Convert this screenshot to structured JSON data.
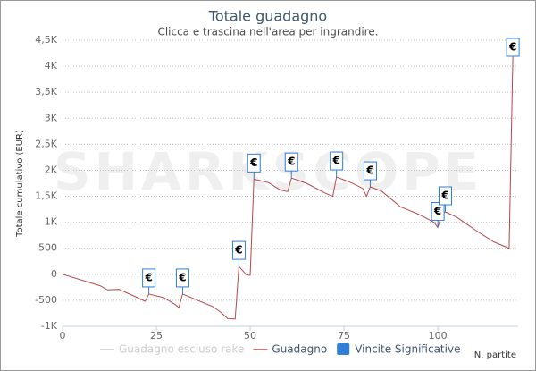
{
  "chart_data": {
    "type": "line",
    "title": "Totale guadagno",
    "subtitle": "Clicca e trascina nell'area per ingrandire.",
    "watermark": "SHARKSCOPE",
    "y_label": "Totale cumulativo (EUR)",
    "x_label": "N. partite",
    "xlim": [
      0,
      121.4
    ],
    "xticks": [
      0,
      25,
      50,
      75,
      100
    ],
    "ylim": [
      -1000,
      4500
    ],
    "yticks": [
      {
        "value": -1000,
        "label": "-1K"
      },
      -500,
      0,
      500,
      {
        "value": 1000,
        "label": "1K"
      },
      {
        "value": 1500,
        "label": "1,5K"
      },
      {
        "value": 2000,
        "label": "2K"
      },
      {
        "value": 2500,
        "label": "2,5K"
      },
      {
        "value": 3000,
        "label": "3K"
      },
      {
        "value": 3500,
        "label": "3,5K"
      },
      {
        "value": 4000,
        "label": "4K"
      },
      {
        "value": 4500,
        "label": "4,5K"
      }
    ],
    "grid": true,
    "x": [
      0,
      10,
      12,
      15,
      20,
      22,
      23,
      27,
      30,
      31,
      32,
      35,
      40,
      42,
      44,
      46,
      47,
      49,
      50,
      51,
      55,
      58,
      60,
      61,
      65,
      70,
      72,
      73,
      77,
      80,
      81,
      82,
      85,
      90,
      95,
      99,
      100,
      101,
      102,
      105,
      110,
      115,
      119,
      120
    ],
    "series": [
      {
        "name": "Guadagno escluso rake",
        "color": "#cccccc",
        "visible": false
      },
      {
        "name": "Guadagno",
        "color": "#b5484b",
        "values": [
          0,
          -220,
          -300,
          -290,
          -450,
          -520,
          -380,
          -450,
          -580,
          -640,
          -380,
          -470,
          -620,
          -720,
          -850,
          -860,
          150,
          -10,
          -20,
          1830,
          1760,
          1620,
          1590,
          1850,
          1750,
          1560,
          1500,
          1870,
          1760,
          1650,
          1500,
          1680,
          1600,
          1300,
          1150,
          1000,
          900,
          1150,
          1200,
          1100,
          850,
          620,
          500,
          4180
        ]
      }
    ],
    "flags": {
      "name": "Vincite Significative",
      "color": "#2f7ed8",
      "text": "€",
      "x": [
        23,
        32,
        47,
        51,
        61,
        73,
        82,
        100,
        102,
        120
      ]
    }
  }
}
